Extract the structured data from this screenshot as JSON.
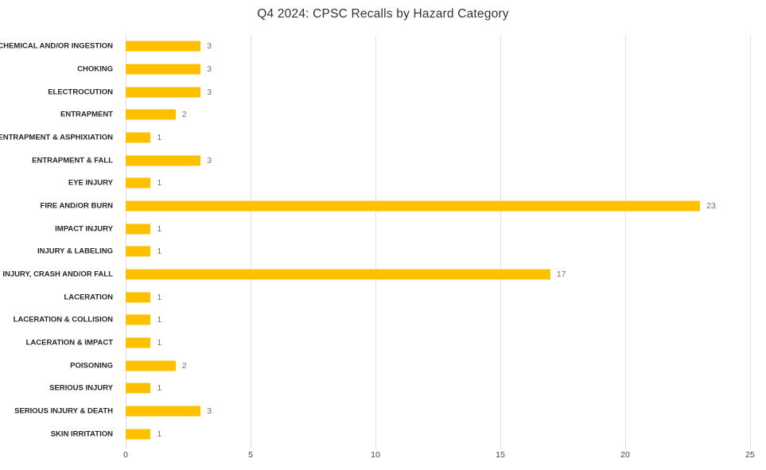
{
  "chart_data": {
    "type": "bar",
    "orientation": "horizontal",
    "title": "Q4 2024: CPSC Recalls by Hazard Category",
    "categories": [
      "CHEMICAL AND/OR INGESTION",
      "CHOKING",
      "ELECTROCUTION",
      "ENTRAPMENT",
      "ENTRAPMENT & ASPHIXIATION",
      "ENTRAPMENT & FALL",
      "EYE INJURY",
      "FIRE AND/OR BURN",
      "IMPACT INJURY",
      "INJURY & LABELING",
      "INJURY, CRASH AND/OR FALL",
      "LACERATION",
      "LACERATION & COLLISION",
      "LACERATION & IMPACT",
      "POISONING",
      "SERIOUS INJURY",
      "SERIOUS INJURY & DEATH",
      "SKIN IRRITATION"
    ],
    "values": [
      3,
      3,
      3,
      2,
      1,
      3,
      1,
      23,
      1,
      1,
      17,
      1,
      1,
      1,
      2,
      1,
      3,
      1
    ],
    "xlabel": "",
    "ylabel": "",
    "xlim": [
      0,
      25
    ],
    "xticks": [
      0,
      5,
      10,
      15,
      20,
      25
    ],
    "grid": true,
    "legend": false,
    "colors": {
      "bar": "#FFC000",
      "gridline": "#E9DEE7",
      "axis_line": "#E3D6DE",
      "value_label": "#7E6C6C",
      "tick_label": "#444444",
      "category_label": "#262626",
      "title": "#333333"
    }
  }
}
